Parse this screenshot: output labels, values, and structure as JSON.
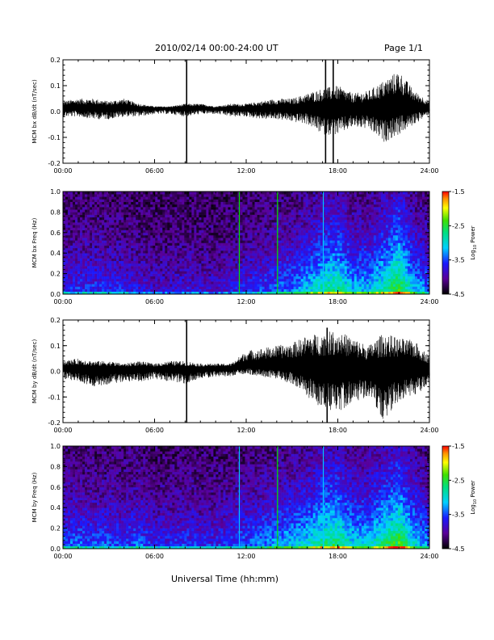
{
  "header": {
    "title": "2010/02/14  00:00-24:00 UT",
    "page": "Page 1/1"
  },
  "footer": {
    "xlabel": "Universal Time (hh:mm)"
  },
  "chart_data": [
    {
      "type": "line",
      "ylabel": "MCM bx dB/dt (nT/sec)",
      "xlim": [
        0,
        24
      ],
      "ylim": [
        -0.2,
        0.2
      ],
      "x_ticks": [
        "00:00",
        "06:00",
        "12:00",
        "18:00",
        "24:00"
      ],
      "y_ticks": [
        "-0.2",
        "-0.1",
        "0.0",
        "0.1",
        "0.2"
      ],
      "envelope": {
        "hours": [
          0,
          1,
          2,
          3,
          4,
          5,
          6,
          7,
          8,
          9,
          10,
          11,
          12,
          13,
          14,
          15,
          16,
          17,
          18,
          19,
          20,
          21,
          22,
          23,
          24
        ],
        "max": [
          0.04,
          0.05,
          0.05,
          0.04,
          0.05,
          0.03,
          0.02,
          0.02,
          0.03,
          0.03,
          0.02,
          0.03,
          0.03,
          0.04,
          0.05,
          0.05,
          0.07,
          0.09,
          0.1,
          0.07,
          0.08,
          0.12,
          0.16,
          0.08,
          0.04
        ],
        "min": [
          -0.02,
          -0.02,
          -0.03,
          -0.03,
          -0.02,
          -0.02,
          -0.01,
          -0.01,
          -0.02,
          -0.01,
          -0.01,
          -0.02,
          -0.02,
          -0.03,
          -0.03,
          -0.04,
          -0.05,
          -0.09,
          -0.09,
          -0.06,
          -0.07,
          -0.12,
          -0.09,
          -0.05,
          -0.01
        ]
      },
      "spikes": [
        {
          "hour": 8.1,
          "min": -0.2,
          "max": 0.2
        },
        {
          "hour": 17.2,
          "min": -0.2,
          "max": 0.2
        },
        {
          "hour": 17.7,
          "min": -0.2,
          "max": 0.2
        }
      ],
      "color": "#000000"
    },
    {
      "type": "heatmap",
      "ylabel": "MCM bx Freq (Hz)",
      "xlim": [
        0,
        24
      ],
      "ylim": [
        0.0,
        1.0
      ],
      "x_ticks": [
        "00:00",
        "06:00",
        "12:00",
        "18:00",
        "24:00"
      ],
      "y_ticks": [
        "0.0",
        "0.2",
        "0.4",
        "0.6",
        "0.8",
        "1.0"
      ],
      "colorbar": {
        "label": "Log10 Power",
        "ticks": [
          "-1.5",
          "-2.5",
          "-3.5",
          "-4.5"
        ],
        "range": [
          -4.5,
          -1.5
        ]
      },
      "hour_activity": [
        0.3,
        0.32,
        0.33,
        0.3,
        0.3,
        0.25,
        0.2,
        0.2,
        0.25,
        0.22,
        0.2,
        0.25,
        0.3,
        0.35,
        0.4,
        0.45,
        0.55,
        0.7,
        0.75,
        0.55,
        0.55,
        0.7,
        0.9,
        0.55,
        0.4
      ],
      "vertical_lines": [
        {
          "hour": 11.55,
          "color": "#00e600"
        },
        {
          "hour": 14.05,
          "color": "#00e600"
        },
        {
          "hour": 17.05,
          "color": "#00c8ff"
        }
      ]
    },
    {
      "type": "line",
      "ylabel": "MCM by dB/dt (nT/sec)",
      "xlim": [
        0,
        24
      ],
      "ylim": [
        -0.2,
        0.2
      ],
      "x_ticks": [
        "00:00",
        "06:00",
        "12:00",
        "18:00",
        "24:00"
      ],
      "y_ticks": [
        "-0.2",
        "-0.1",
        "0.0",
        "0.1",
        "0.2"
      ],
      "envelope": {
        "hours": [
          0,
          1,
          2,
          3,
          4,
          5,
          6,
          7,
          8,
          9,
          10,
          11,
          12,
          13,
          14,
          15,
          16,
          17,
          18,
          19,
          20,
          21,
          22,
          23,
          24
        ],
        "max": [
          0.04,
          0.05,
          0.04,
          0.04,
          0.03,
          0.04,
          0.03,
          0.04,
          0.04,
          0.03,
          0.03,
          0.03,
          0.08,
          0.09,
          0.1,
          0.11,
          0.14,
          0.15,
          0.16,
          0.13,
          0.1,
          0.15,
          0.13,
          0.12,
          0.06
        ],
        "min": [
          -0.03,
          -0.04,
          -0.06,
          -0.05,
          -0.04,
          -0.04,
          -0.03,
          -0.04,
          -0.05,
          -0.03,
          -0.02,
          -0.02,
          -0.01,
          -0.02,
          -0.03,
          -0.05,
          -0.1,
          -0.15,
          -0.16,
          -0.12,
          -0.1,
          -0.2,
          -0.12,
          -0.1,
          -0.05
        ]
      },
      "spikes": [
        {
          "hour": 8.1,
          "min": -0.2,
          "max": 0.2
        },
        {
          "hour": 17.3,
          "min": -0.2,
          "max": 0.17
        }
      ],
      "color": "#000000"
    },
    {
      "type": "heatmap",
      "ylabel": "MCM by Freq (Hz)",
      "xlim": [
        0,
        24
      ],
      "ylim": [
        0.0,
        1.0
      ],
      "x_ticks": [
        "00:00",
        "06:00",
        "12:00",
        "18:00",
        "24:00"
      ],
      "y_ticks": [
        "0.0",
        "0.2",
        "0.4",
        "0.6",
        "0.8",
        "1.0"
      ],
      "colorbar": {
        "label": "Log10 Power",
        "ticks": [
          "-1.5",
          "-2.5",
          "-3.5",
          "-4.5"
        ],
        "range": [
          -4.5,
          -1.5
        ]
      },
      "hour_activity": [
        0.4,
        0.4,
        0.38,
        0.38,
        0.35,
        0.4,
        0.3,
        0.3,
        0.35,
        0.3,
        0.3,
        0.35,
        0.4,
        0.45,
        0.5,
        0.55,
        0.62,
        0.75,
        0.8,
        0.6,
        0.6,
        0.75,
        0.9,
        0.6,
        0.45
      ],
      "vertical_lines": [
        {
          "hour": 11.55,
          "color": "#00c8ff"
        },
        {
          "hour": 14.05,
          "color": "#00e600"
        },
        {
          "hour": 17.05,
          "color": "#00c8ff"
        }
      ]
    }
  ]
}
